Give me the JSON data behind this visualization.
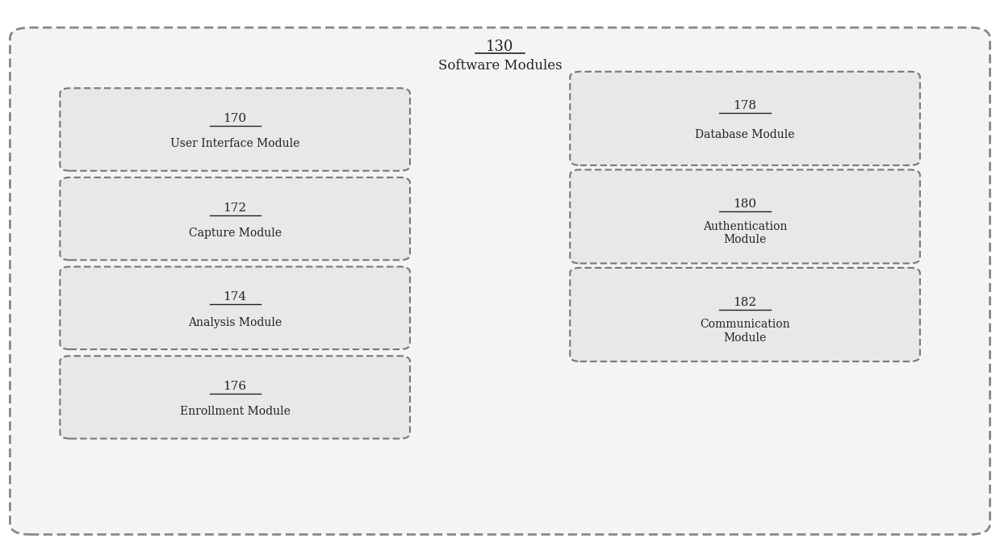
{
  "title_number": "130",
  "title_label": "Software Modules",
  "background_color": "#ffffff",
  "text_color": "#222222",
  "left_boxes": [
    {
      "number": "170",
      "label": "User Interface Module"
    },
    {
      "number": "172",
      "label": "Capture Module"
    },
    {
      "number": "174",
      "label": "Analysis Module"
    },
    {
      "number": "176",
      "label": "Enrollment Module"
    }
  ],
  "right_boxes": [
    {
      "number": "178",
      "label": "Database Module"
    },
    {
      "number": "180",
      "label": "Authentication\nModule"
    },
    {
      "number": "182",
      "label": "Communication\nModule"
    }
  ],
  "fig_width": 12.39,
  "fig_height": 6.83,
  "dpi": 100
}
